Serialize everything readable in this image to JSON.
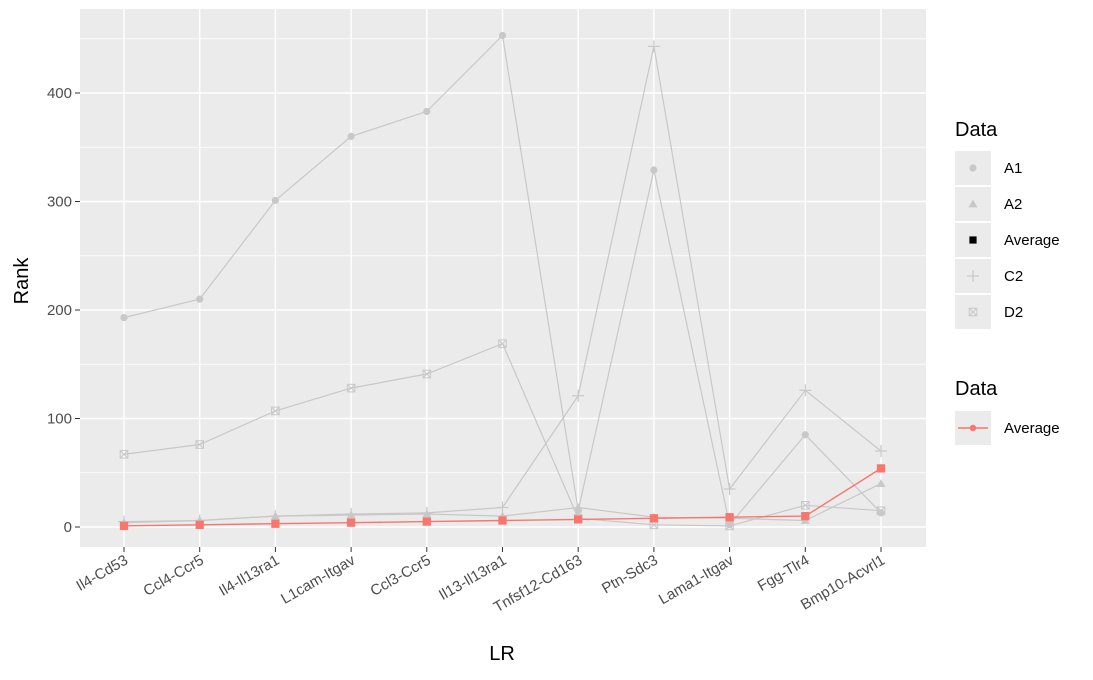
{
  "chart_data": {
    "type": "line",
    "xlabel": "LR",
    "ylabel": "Rank",
    "categories": [
      "Il4-Cd53",
      "Ccl4-Ccr5",
      "Il4-Il13ra1",
      "L1cam-Itgav",
      "Ccl3-Ccr5",
      "Il13-Il13ra1",
      "Tnfsf12-Cd163",
      "Ptn-Sdc3",
      "Lama1-Itgav",
      "Fgg-Tlr4",
      "Bmp10-Acvrl1"
    ],
    "ylim": [
      -20,
      475
    ],
    "yticks": [
      0,
      100,
      200,
      300,
      400
    ],
    "grid": true,
    "legend_position": "right",
    "series": [
      {
        "name": "A1",
        "shape": "circle",
        "color": "#c8c8c8",
        "values": [
          193,
          210,
          301,
          360,
          383,
          453,
          15,
          329,
          2,
          85,
          13
        ]
      },
      {
        "name": "A2",
        "shape": "triangle",
        "color": "#c8c8c8",
        "values": [
          4,
          6,
          10,
          11,
          12,
          10,
          18,
          9,
          8,
          6,
          40
        ]
      },
      {
        "name": "C2",
        "shape": "plus",
        "color": "#c8c8c8",
        "values": [
          5,
          6,
          10,
          12,
          13,
          18,
          121,
          443,
          35,
          126,
          70
        ]
      },
      {
        "name": "D2",
        "shape": "boxx",
        "color": "#c8c8c8",
        "values": [
          67,
          76,
          107,
          128,
          141,
          169,
          8,
          2,
          1,
          20,
          15
        ]
      },
      {
        "name": "Average",
        "shape": "square",
        "color": "#f8766d",
        "values": [
          1,
          2,
          3,
          4,
          5,
          6,
          7,
          8,
          9,
          10,
          54
        ]
      }
    ]
  },
  "legend": {
    "shape_title": "Data",
    "shape_items": [
      {
        "label": "A1",
        "shape": "circle"
      },
      {
        "label": "A2",
        "shape": "triangle"
      },
      {
        "label": "Average",
        "shape": "square"
      },
      {
        "label": "C2",
        "shape": "plus"
      },
      {
        "label": "D2",
        "shape": "boxx"
      }
    ],
    "color_title": "Data",
    "color_items": [
      {
        "label": "Average",
        "color": "#f8766d"
      }
    ]
  }
}
